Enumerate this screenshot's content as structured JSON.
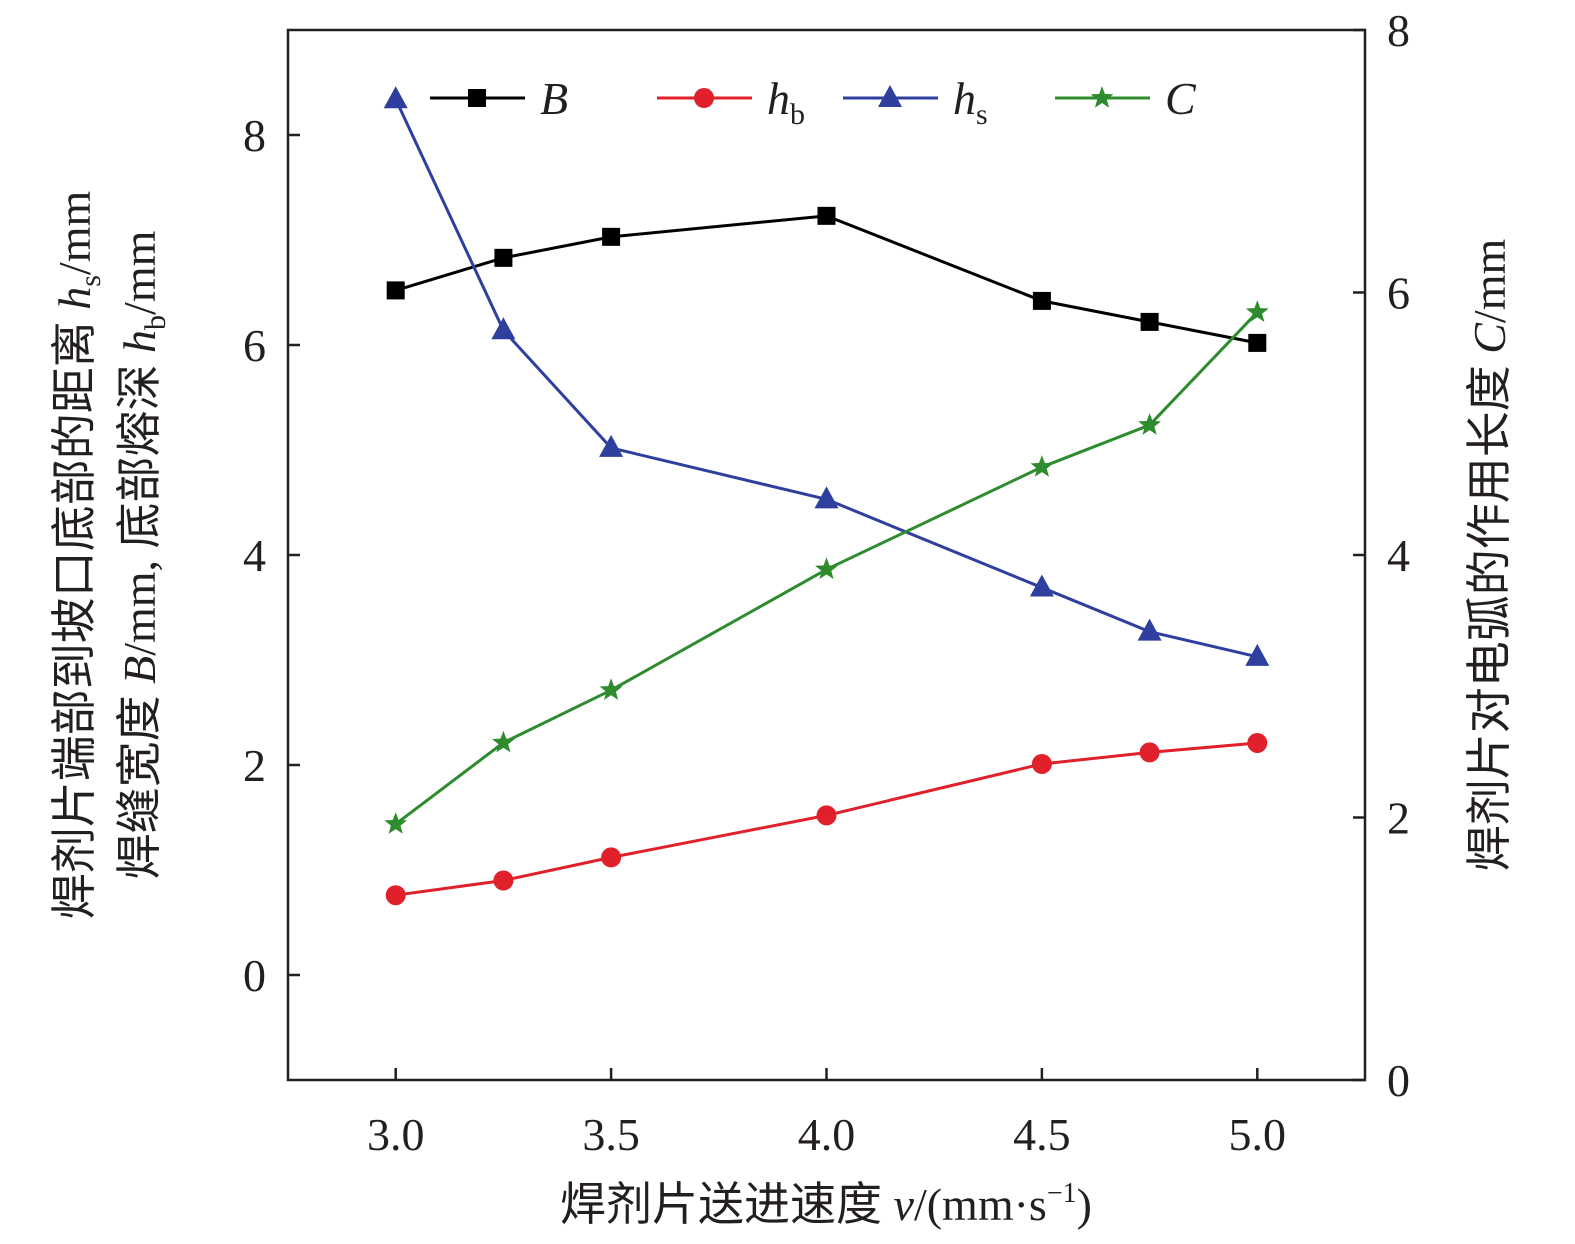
{
  "chart_data": {
    "type": "line",
    "x": [
      3.0,
      3.25,
      3.5,
      4.0,
      4.5,
      4.75,
      5.0
    ],
    "xlim": [
      2.75,
      5.25
    ],
    "ylim_left": [
      -1,
      9
    ],
    "ylim_right": [
      0,
      8
    ],
    "xticks": [
      "3.0",
      "3.5",
      "4.0",
      "4.5",
      "5.0"
    ],
    "yticks_left": [
      "0",
      "2",
      "4",
      "6",
      "8"
    ],
    "yticks_right": [
      "0",
      "2",
      "4",
      "6",
      "8"
    ],
    "grid": false,
    "legend_position": "top",
    "series": [
      {
        "name": "B",
        "sub": "",
        "axis": "left",
        "marker": "square",
        "color": "#000000",
        "values": [
          6.52,
          6.83,
          7.03,
          7.23,
          6.42,
          6.22,
          6.02
        ]
      },
      {
        "name": "h",
        "sub": "b",
        "axis": "left",
        "marker": "circle",
        "color": "#e0202a",
        "values": [
          0.76,
          0.9,
          1.12,
          1.52,
          2.01,
          2.12,
          2.21
        ]
      },
      {
        "name": "h",
        "sub": "s",
        "axis": "left",
        "marker": "triangle",
        "color": "#2e3f9e",
        "values": [
          8.34,
          6.14,
          5.02,
          4.53,
          3.69,
          3.27,
          3.03
        ]
      },
      {
        "name": "C",
        "sub": "",
        "axis": "right",
        "marker": "star",
        "color": "#2e8b2e",
        "values": [
          1.95,
          2.57,
          2.97,
          3.89,
          4.67,
          4.99,
          5.85
        ]
      }
    ],
    "xlabel": {
      "text": "焊剂片送进速度 ",
      "var": "v",
      "unit": "/(mm·s",
      "sup": "−1",
      "close": ")"
    },
    "ylabel_left_outer": {
      "text": "焊剂片端部到坡口底部的距离 ",
      "var": "h",
      "sub": "s",
      "unit": "/mm"
    },
    "ylabel_left_inner": {
      "text": "焊缝宽度 ",
      "var1": "B",
      "mid": "/mm, 底部熔深 ",
      "var2": "h",
      "sub": "b",
      "unit": "/mm"
    },
    "ylabel_right": {
      "text": "焊剂片对电弧的作用长度 ",
      "var": "C",
      "unit": "/mm"
    }
  }
}
